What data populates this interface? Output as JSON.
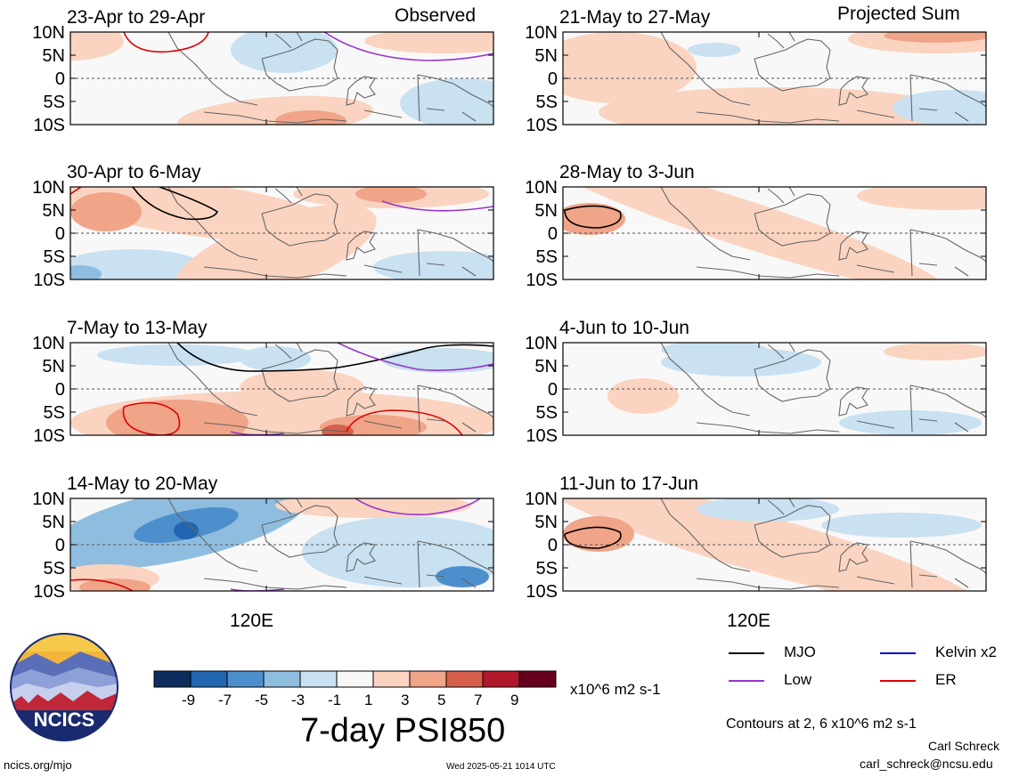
{
  "colors": {
    "scale": [
      "#0d2e5c",
      "#2066b0",
      "#4d8fcc",
      "#8fbde0",
      "#c9e1f1",
      "#f8f8f8",
      "#fad4c1",
      "#f0a488",
      "#d6604d",
      "#b2182b",
      "#67001f"
    ],
    "mjo": "#000000",
    "low": "#9933cc",
    "kelvin": "#0000cc",
    "er": "#dd0000",
    "coast": "#666666"
  },
  "labels": {
    "observed": "Observed",
    "projected": "Projected Sum",
    "lat_ticks": [
      "10N",
      "5N",
      "0",
      "5S",
      "10S"
    ],
    "lon_tick": "120E",
    "colorbar_ticks": [
      "-9",
      "-7",
      "-5",
      "-3",
      "-1",
      "1",
      "3",
      "5",
      "7",
      "9"
    ],
    "colorbar_units": "x10^6 m2 s-1",
    "main_title": "7-day PSI850",
    "contour_note": "Contours at 2, 6 x10^6 m2 s-1",
    "author": "Carl Schreck",
    "email": "carl_schreck@ncsu.edu",
    "site": "ncics.org/mjo",
    "timestamp": "Wed 2025-05-21 1014 UTC",
    "logo_text": "NCICS"
  },
  "legend": [
    {
      "name": "MJO",
      "color_key": "mjo"
    },
    {
      "name": "Kelvin x2",
      "color_key": "kelvin"
    },
    {
      "name": "Low",
      "color_key": "low"
    },
    {
      "name": "ER",
      "color_key": "er"
    }
  ],
  "chart_data": [
    {
      "type": "heatmap",
      "period": "23-Apr to 29-Apr",
      "group": "Observed",
      "ylim": [
        -10,
        10
      ],
      "x_tick": "120E"
    },
    {
      "type": "heatmap",
      "period": "30-Apr to 6-May",
      "group": "Observed",
      "ylim": [
        -10,
        10
      ],
      "x_tick": "120E"
    },
    {
      "type": "heatmap",
      "period": "7-May to 13-May",
      "group": "Observed",
      "ylim": [
        -10,
        10
      ],
      "x_tick": "120E"
    },
    {
      "type": "heatmap",
      "period": "14-May to 20-May",
      "group": "Observed",
      "ylim": [
        -10,
        10
      ],
      "x_tick": "120E"
    },
    {
      "type": "heatmap",
      "period": "21-May to 27-May",
      "group": "Projected Sum",
      "ylim": [
        -10,
        10
      ],
      "x_tick": "120E"
    },
    {
      "type": "heatmap",
      "period": "28-May to 3-Jun",
      "group": "Projected Sum",
      "ylim": [
        -10,
        10
      ],
      "x_tick": "120E"
    },
    {
      "type": "heatmap",
      "period": "4-Jun to 10-Jun",
      "group": "Projected Sum",
      "ylim": [
        -10,
        10
      ],
      "x_tick": "120E"
    },
    {
      "type": "heatmap",
      "period": "11-Jun to 17-Jun",
      "group": "Projected Sum",
      "ylim": [
        -10,
        10
      ],
      "x_tick": "120E"
    }
  ]
}
